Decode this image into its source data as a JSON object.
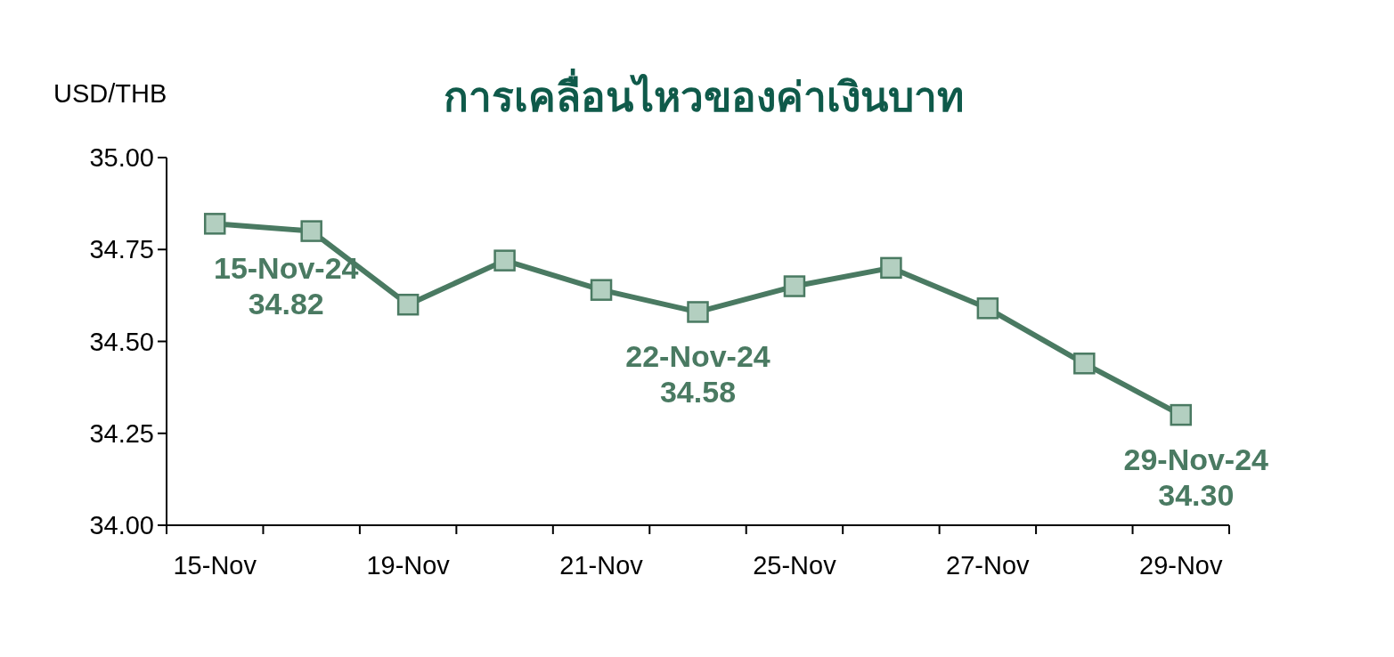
{
  "chart_data": {
    "type": "line",
    "title": "การเคลื่อนไหวของค่าเงินบาท",
    "ylabel": "USD/THB",
    "categories": [
      "15-Nov",
      null,
      "19-Nov",
      null,
      "21-Nov",
      null,
      "25-Nov",
      null,
      "27-Nov",
      null,
      "29-Nov"
    ],
    "series": [
      {
        "color": "#4a7a62",
        "values": [
          34.82,
          34.8,
          34.6,
          34.72,
          34.64,
          34.58,
          34.65,
          34.7,
          34.59,
          34.44,
          34.3
        ]
      }
    ],
    "ylim": [
      34.0,
      35.0
    ],
    "yticks": [
      {
        "value": 34.0,
        "label": "34.00"
      },
      {
        "value": 34.25,
        "label": "34.25"
      },
      {
        "value": 34.5,
        "label": "34.50"
      },
      {
        "value": 34.75,
        "label": "34.75"
      },
      {
        "value": 35.0,
        "label": "35.00"
      }
    ],
    "marker": "square",
    "grid": false,
    "annotations": [
      {
        "text": "15-Nov-24\n34.82",
        "x": "15-Nov",
        "y": 34.82
      },
      {
        "text": "22-Nov-24\n34.58",
        "y": 34.58
      },
      {
        "text": "29-Nov-24\n34.30",
        "x": "29-Nov",
        "y": 34.3
      }
    ]
  }
}
